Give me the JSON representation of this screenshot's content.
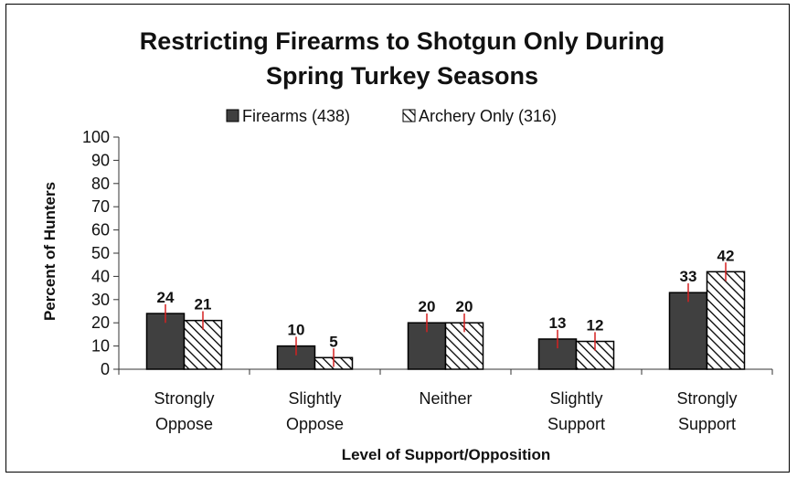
{
  "chart_data": {
    "type": "bar",
    "title_line1": "Restricting Firearms to Shotgun Only During",
    "title_line2": "Spring Turkey Seasons",
    "xlabel": "Level of Support/Opposition",
    "ylabel": "Percent of Hunters",
    "ylim": [
      0,
      100
    ],
    "yticks": [
      "0",
      "10",
      "20",
      "30",
      "40",
      "50",
      "60",
      "70",
      "80",
      "90",
      "100"
    ],
    "legend_position": "top",
    "grid": false,
    "error_bars": true,
    "categories": [
      [
        "Strongly",
        "Oppose"
      ],
      [
        "Slightly",
        "Oppose"
      ],
      [
        "Neither"
      ],
      [
        "Slightly",
        "Support"
      ],
      [
        "Strongly",
        "Support"
      ]
    ],
    "series": [
      {
        "name": "Firearms (438)",
        "values": [
          24,
          10,
          20,
          13,
          33
        ],
        "labels": [
          "24",
          "10",
          "20",
          "13",
          "33"
        ],
        "fill": "solid",
        "color": "#404040"
      },
      {
        "name": "Archery Only (316)",
        "values": [
          21,
          5,
          20,
          12,
          42
        ],
        "labels": [
          "21",
          "5",
          "20",
          "12",
          "42"
        ],
        "fill": "hatched",
        "color": "#ffffff"
      }
    ],
    "colors": {
      "bar_outline": "#000000",
      "error_bar": "#d42020",
      "axis": "#333333"
    }
  }
}
